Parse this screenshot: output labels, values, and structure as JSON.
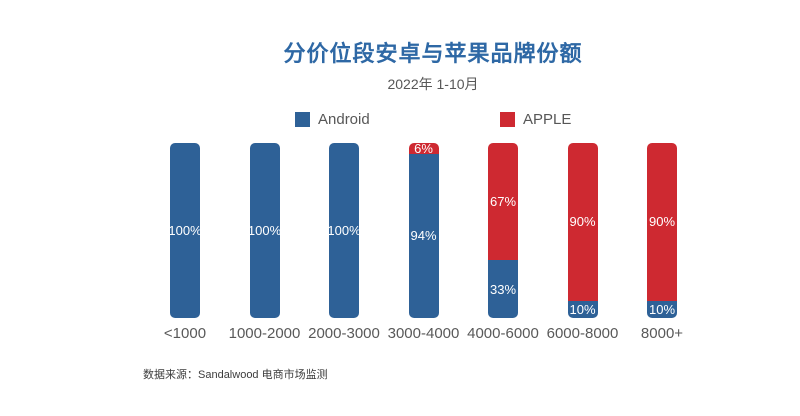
{
  "header": {
    "title": "分价位段安卓与苹果品牌份额",
    "subtitle": "2022年 1-10月"
  },
  "legend": [
    {
      "label": "Android",
      "color": "#2e6197"
    },
    {
      "label": "APPLE",
      "color": "#ce2931"
    }
  ],
  "chart_data": {
    "type": "bar",
    "stacked": true,
    "orientation": "vertical",
    "title": "分价位段安卓与苹果品牌份额",
    "subtitle": "2022年 1-10月",
    "categories": [
      "<1000",
      "1000-2000",
      "2000-3000",
      "3000-4000",
      "4000-6000",
      "6000-8000",
      "8000+"
    ],
    "series": [
      {
        "name": "Android",
        "color": "#2e6197",
        "values": [
          100,
          100,
          100,
          94,
          33,
          10,
          10
        ],
        "labels": [
          "100%",
          "100%",
          "100%",
          "94%",
          "33%",
          "10%",
          "10%"
        ]
      },
      {
        "name": "APPLE",
        "color": "#ce2931",
        "values": [
          0,
          0,
          0,
          6,
          67,
          90,
          90
        ],
        "labels": [
          "",
          "",
          "",
          "6%",
          "67%",
          "90%",
          "90%"
        ]
      }
    ],
    "unit": "%",
    "ylim": [
      0,
      100
    ],
    "grid": false,
    "axes_visible": false,
    "legend_position": "top",
    "data_label_color": "#ffffff"
  },
  "footer": {
    "source": "数据来源：Sandalwood 电商市场监测"
  },
  "colors": {
    "android": "#2e6197",
    "apple": "#ce2931",
    "title_text": "#2e68a5",
    "axis_text": "#595959",
    "background": "#ffffff"
  }
}
